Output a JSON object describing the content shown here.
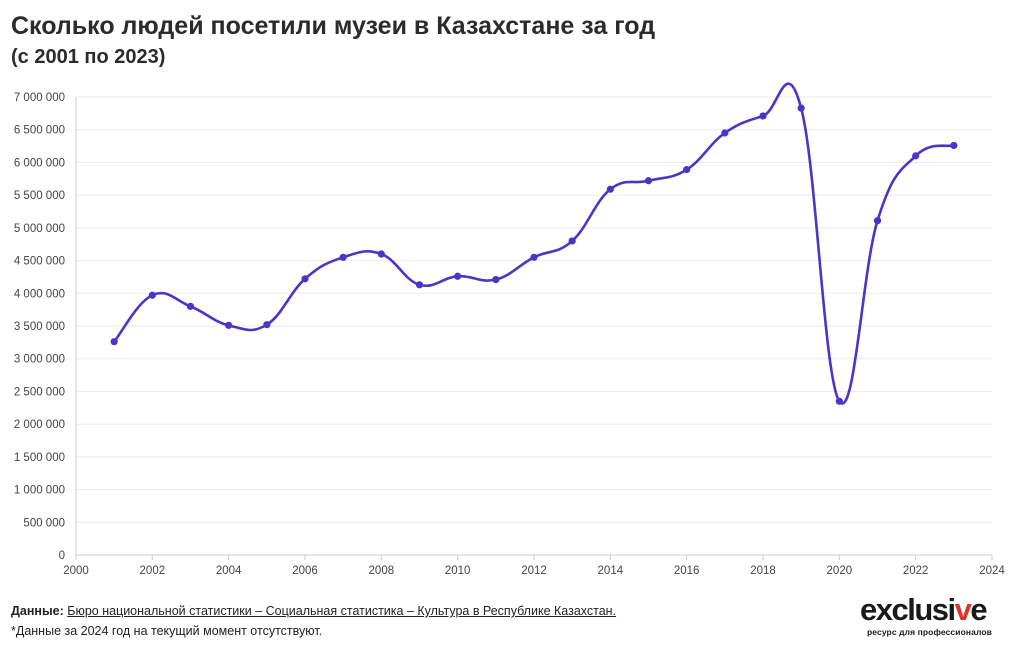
{
  "header": {
    "title": "Сколько людей посетили музеи в Казахстане за год",
    "subtitle": "(с 2001 по 2023)"
  },
  "footer": {
    "data_label": "Данные:",
    "source": "Бюро национальной статистики – Социальная статистика – Культура в Республике Казахстан.",
    "note": "*Данные за 2024 год на текущий момент отсутствуют."
  },
  "logo": {
    "word_main": "exclusi",
    "word_accent": "v",
    "word_end": "e",
    "tagline": "ресурс для профессионалов"
  },
  "colors": {
    "line": "#4a35c8",
    "grid": "#ebebeb",
    "axis": "#cccccc",
    "accent": "#e0312b"
  },
  "chart_data": {
    "type": "line",
    "x": [
      2001,
      2002,
      2003,
      2004,
      2005,
      2006,
      2007,
      2008,
      2009,
      2010,
      2011,
      2012,
      2013,
      2014,
      2015,
      2016,
      2017,
      2018,
      2019,
      2020,
      2021,
      2022,
      2023
    ],
    "series": [
      {
        "values": [
          3260000,
          3970000,
          3800000,
          3510000,
          3520000,
          4220000,
          4550000,
          4600000,
          4130000,
          4260000,
          4210000,
          4550000,
          4800000,
          5590000,
          5720000,
          5890000,
          6450000,
          6710000,
          6830000,
          2350000,
          5110000,
          6100000,
          6260000
        ]
      }
    ],
    "xlim": [
      2000,
      2024
    ],
    "ylim": [
      0,
      7000000
    ],
    "x_ticks": [
      "2000",
      "2002",
      "2004",
      "2006",
      "2008",
      "2010",
      "2012",
      "2014",
      "2016",
      "2018",
      "2020",
      "2022",
      "2024"
    ],
    "y_ticks": [
      "0",
      "500 000",
      "1 000 000",
      "1 500 000",
      "2 000 000",
      "2 500 000",
      "3 000 000",
      "3 500 000",
      "4 000 000",
      "4 500 000",
      "5 000 000",
      "5 500 000",
      "6 000 000",
      "6 500 000",
      "7 000 000"
    ],
    "grid": true,
    "legend": "none"
  }
}
